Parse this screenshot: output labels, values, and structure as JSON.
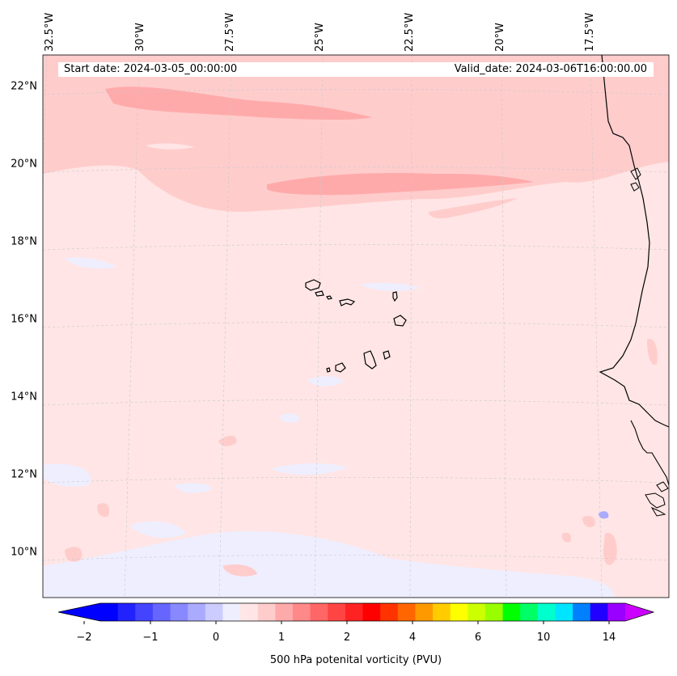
{
  "header": {
    "start_date": "Start date: 2024-03-05_00:00:00",
    "valid_date": "Valid_date: 2024-03-06T16:00:00.00"
  },
  "map": {
    "type": "filled-contour-map",
    "variable": "500 hPa potenital vorticity (PVU)",
    "projection": "conic",
    "lon_range": [
      -33,
      -15.5
    ],
    "lat_range": [
      8.8,
      22.8
    ],
    "background_level_color": "#ffe5e5",
    "features": [
      "coastline",
      "Cape Verde islands",
      "West African coast"
    ],
    "lat_labels": [
      "22°N",
      "20°N",
      "18°N",
      "16°N",
      "14°N",
      "12°N",
      "10°N"
    ],
    "lon_labels": [
      "32.5°W",
      "30°W",
      "27.5°W",
      "25°W",
      "22.5°W",
      "20°W",
      "17.5°W"
    ]
  },
  "colorbar": {
    "label": "500 hPa potenital vorticity (PVU)",
    "tick_labels": [
      "−2",
      "−1",
      "0",
      "1",
      "2",
      "4",
      "6",
      "10",
      "14"
    ],
    "colors": [
      "#0000ff",
      "#2222ff",
      "#4444ff",
      "#6666ff",
      "#8888ff",
      "#aaaaff",
      "#ccccff",
      "#eeeeff",
      "#ffe5e5",
      "#ffcccc",
      "#ffaaaa",
      "#ff8888",
      "#ff6666",
      "#ff4444",
      "#ff2222",
      "#ff0000",
      "#ff3300",
      "#ff6600",
      "#ff9900",
      "#ffcc00",
      "#ffff00",
      "#ccff00",
      "#99ff00",
      "#00ff00",
      "#00ff66",
      "#00ffcc",
      "#00e5ff",
      "#0080ff",
      "#2200ff",
      "#9900ff"
    ],
    "extend_colors": {
      "min": "#0000ff",
      "max": "#cc00ff"
    }
  }
}
